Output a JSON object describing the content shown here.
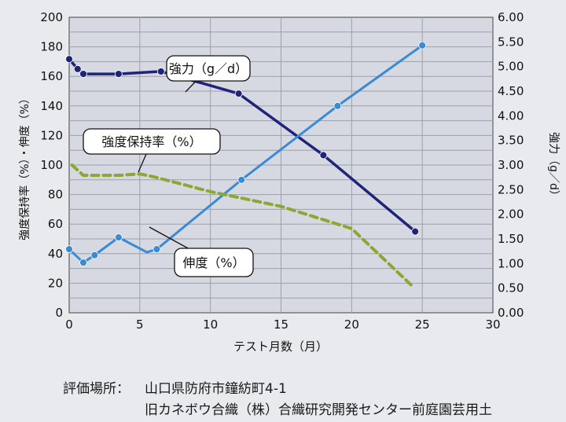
{
  "chart_data": {
    "type": "line",
    "xlabel": "テスト月数（月）",
    "ylabel_left": "強度保持率（%）・伸度（%）",
    "ylabel_right": "強力（g／d）",
    "xlim": [
      0,
      30
    ],
    "ylim_left": [
      0,
      200
    ],
    "ylim_right": [
      0,
      6
    ],
    "x_ticks": [
      "0",
      "5",
      "10",
      "15",
      "20",
      "25",
      "30"
    ],
    "y_left_ticks": [
      "0",
      "20",
      "40",
      "60",
      "80",
      "100",
      "120",
      "140",
      "160",
      "180",
      "200"
    ],
    "y_right_ticks": [
      "0.00",
      "0.50",
      "1.00",
      "1.50",
      "2.00",
      "2.50",
      "3.00",
      "3.50",
      "4.00",
      "4.50",
      "5.00",
      "5.50",
      "6.00"
    ],
    "grid": true,
    "series": [
      {
        "name": "強力（g／d）",
        "axis": "right",
        "style": "solid",
        "color": "#1f2478",
        "x": [
          0,
          0.6,
          1,
          3.5,
          6.5,
          12,
          18,
          24.5
        ],
        "y": [
          5.15,
          4.95,
          4.85,
          4.85,
          4.9,
          4.45,
          3.2,
          1.65
        ],
        "markers": [
          true,
          true,
          true,
          true,
          true,
          true,
          true,
          true
        ]
      },
      {
        "name": "伸度（%）",
        "axis": "left",
        "style": "solid",
        "color": "#3a8ad4",
        "x": [
          0,
          1,
          1.8,
          3.5,
          5.5,
          6.2,
          12.2,
          19,
          25
        ],
        "y": [
          43,
          34,
          39,
          51,
          41,
          43,
          90,
          140,
          181
        ],
        "markers": [
          true,
          true,
          true,
          true,
          false,
          true,
          true,
          true,
          true
        ]
      },
      {
        "name": "強度保持率（%）",
        "axis": "left",
        "style": "dashed",
        "color": "#8aa833",
        "x": [
          0.2,
          1,
          2.5,
          3.5,
          5,
          6,
          10,
          15,
          20,
          24.3
        ],
        "y": [
          100,
          93,
          93,
          93,
          94,
          92,
          82,
          72,
          57,
          18
        ],
        "markers": [
          false,
          false,
          false,
          false,
          false,
          false,
          false,
          false,
          false,
          false
        ]
      }
    ],
    "annotations": [
      {
        "text": "強力（g／d）"
      },
      {
        "text": "強度保持率（%）"
      },
      {
        "text": "伸度（%）"
      }
    ]
  },
  "footer": {
    "line1_label": "評価場所：",
    "line1_value": "山口県防府市鐘紡町4-1",
    "line2": "旧カネボウ合織（株）合織研究開発センター前庭園芸用土"
  }
}
